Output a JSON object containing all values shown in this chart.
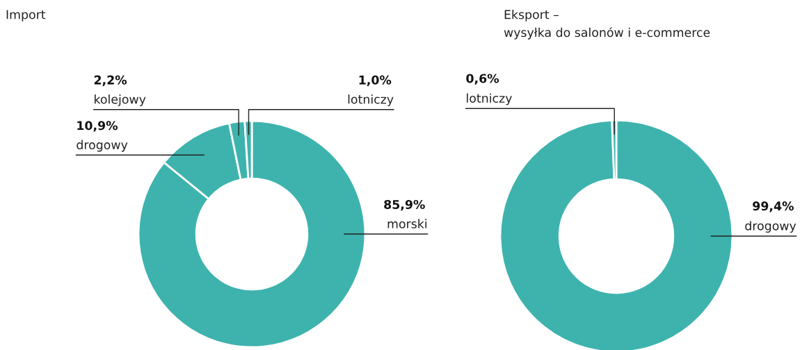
{
  "chart_data": [
    {
      "type": "donut",
      "title": "Import",
      "categories": [
        "morski",
        "drogowy",
        "kolejowy",
        "lotniczy"
      ],
      "values": [
        85.9,
        10.9,
        2.2,
        1.0
      ],
      "colors": [
        "#3eb3ae",
        "#3eb3ae",
        "#3eb3ae",
        "#3eb3ae"
      ],
      "value_labels": [
        "85,9%",
        "10,9%",
        "2,2%",
        "1,0%"
      ]
    },
    {
      "type": "donut",
      "title": "Eksport –\nwysyłka do salonów i e-commerce",
      "categories": [
        "drogowy",
        "lotniczy"
      ],
      "values": [
        99.4,
        0.6
      ],
      "colors": [
        "#3eb3ae",
        "#3eb3ae"
      ],
      "value_labels": [
        "99,4%",
        "0,6%"
      ]
    }
  ]
}
